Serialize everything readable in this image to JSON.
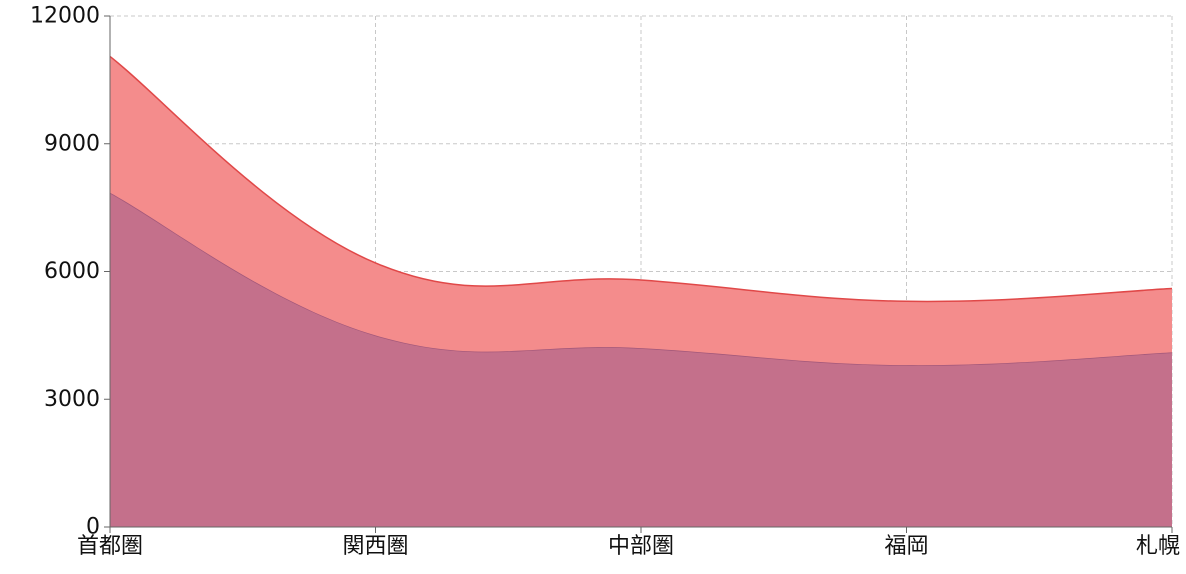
{
  "chart_data": {
    "type": "area",
    "stacked": true,
    "categories": [
      "首都圏",
      "関西圏",
      "中部圏",
      "福岡",
      "札幌"
    ],
    "series": [
      {
        "values": [
          7850,
          4500,
          4200,
          3800,
          4100
        ],
        "color": "#c4708b"
      },
      {
        "values": [
          3200,
          1700,
          1600,
          1500,
          1500
        ],
        "color": "#f48c8c"
      }
    ],
    "stack_tops": [
      11050,
      6200,
      5800,
      5300,
      5600
    ],
    "ylim": [
      0,
      12000
    ],
    "yticks": [
      0,
      3000,
      6000,
      9000,
      12000
    ],
    "ytick_labels": [
      "0",
      "3000",
      "6000",
      "9000",
      "12000"
    ],
    "grid": true,
    "title": "",
    "xlabel": "",
    "ylabel": ""
  }
}
